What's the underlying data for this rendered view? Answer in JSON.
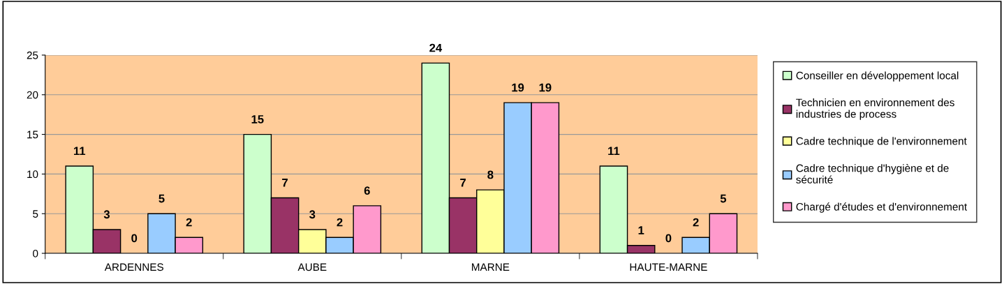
{
  "chart_data": {
    "type": "bar",
    "categories": [
      "ARDENNES",
      "AUBE",
      "MARNE",
      "HAUTE-MARNE"
    ],
    "series": [
      {
        "name": "Conseiller en développement local",
        "color": "#ccffcc",
        "values": [
          11,
          15,
          24,
          11
        ]
      },
      {
        "name": "Technicien en environnement des\nindustries de process",
        "color": "#993366",
        "values": [
          3,
          7,
          7,
          1
        ]
      },
      {
        "name": "Cadre technique de l'environnement",
        "color": "#ffff99",
        "values": [
          0,
          3,
          8,
          0
        ]
      },
      {
        "name": "Cadre technique d'hygiène et de\nsécurité",
        "color": "#99ccff",
        "values": [
          5,
          2,
          19,
          2
        ]
      },
      {
        "name": "Chargé d'études et d'environnement",
        "color": "#ff99cc",
        "values": [
          2,
          6,
          19,
          5
        ]
      }
    ],
    "ylim": [
      0,
      25
    ],
    "yticks": [
      0,
      5,
      10,
      15,
      20,
      25
    ],
    "grid": "y",
    "legend": "right",
    "data_labels": true
  }
}
